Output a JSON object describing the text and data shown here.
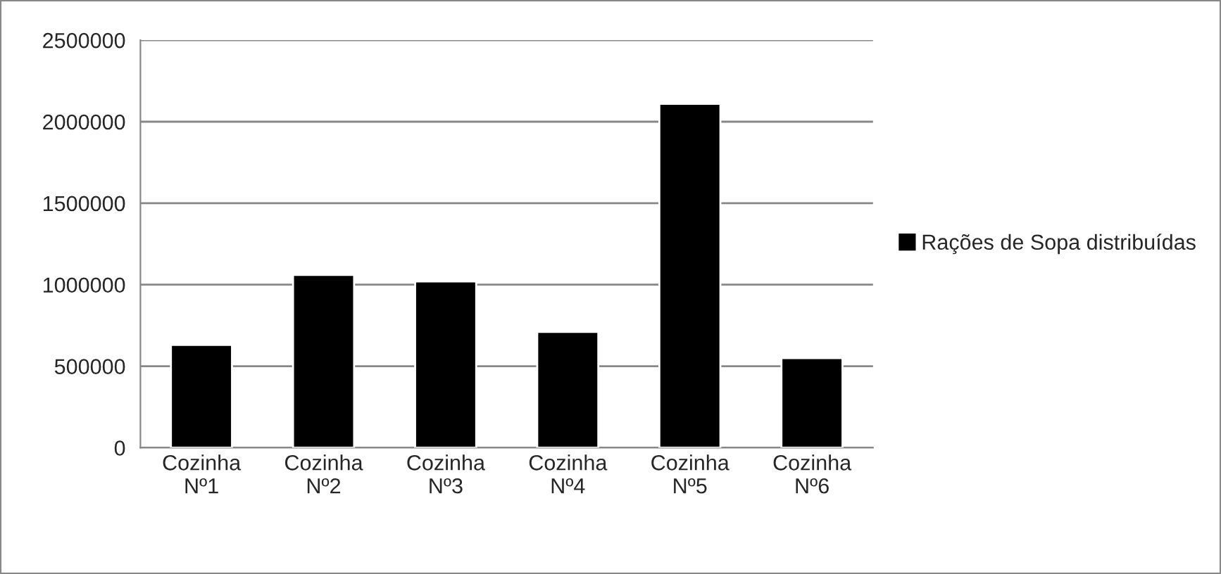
{
  "chart_data": {
    "type": "bar",
    "categories": [
      "Cozinha\nNº1",
      "Cozinha\nNº2",
      "Cozinha\nNº3",
      "Cozinha\nNº4",
      "Cozinha\nNº5",
      "Cozinha\nNº6"
    ],
    "series": [
      {
        "name": "Rações de Sopa distribuídas",
        "color": "#000000",
        "values": [
          630000,
          1060000,
          1020000,
          710000,
          2110000,
          550000
        ]
      }
    ],
    "ylim": [
      0,
      2500000
    ],
    "yticks": [
      0,
      500000,
      1000000,
      1500000,
      2000000,
      2500000
    ],
    "grid": "y",
    "legend": "right"
  }
}
